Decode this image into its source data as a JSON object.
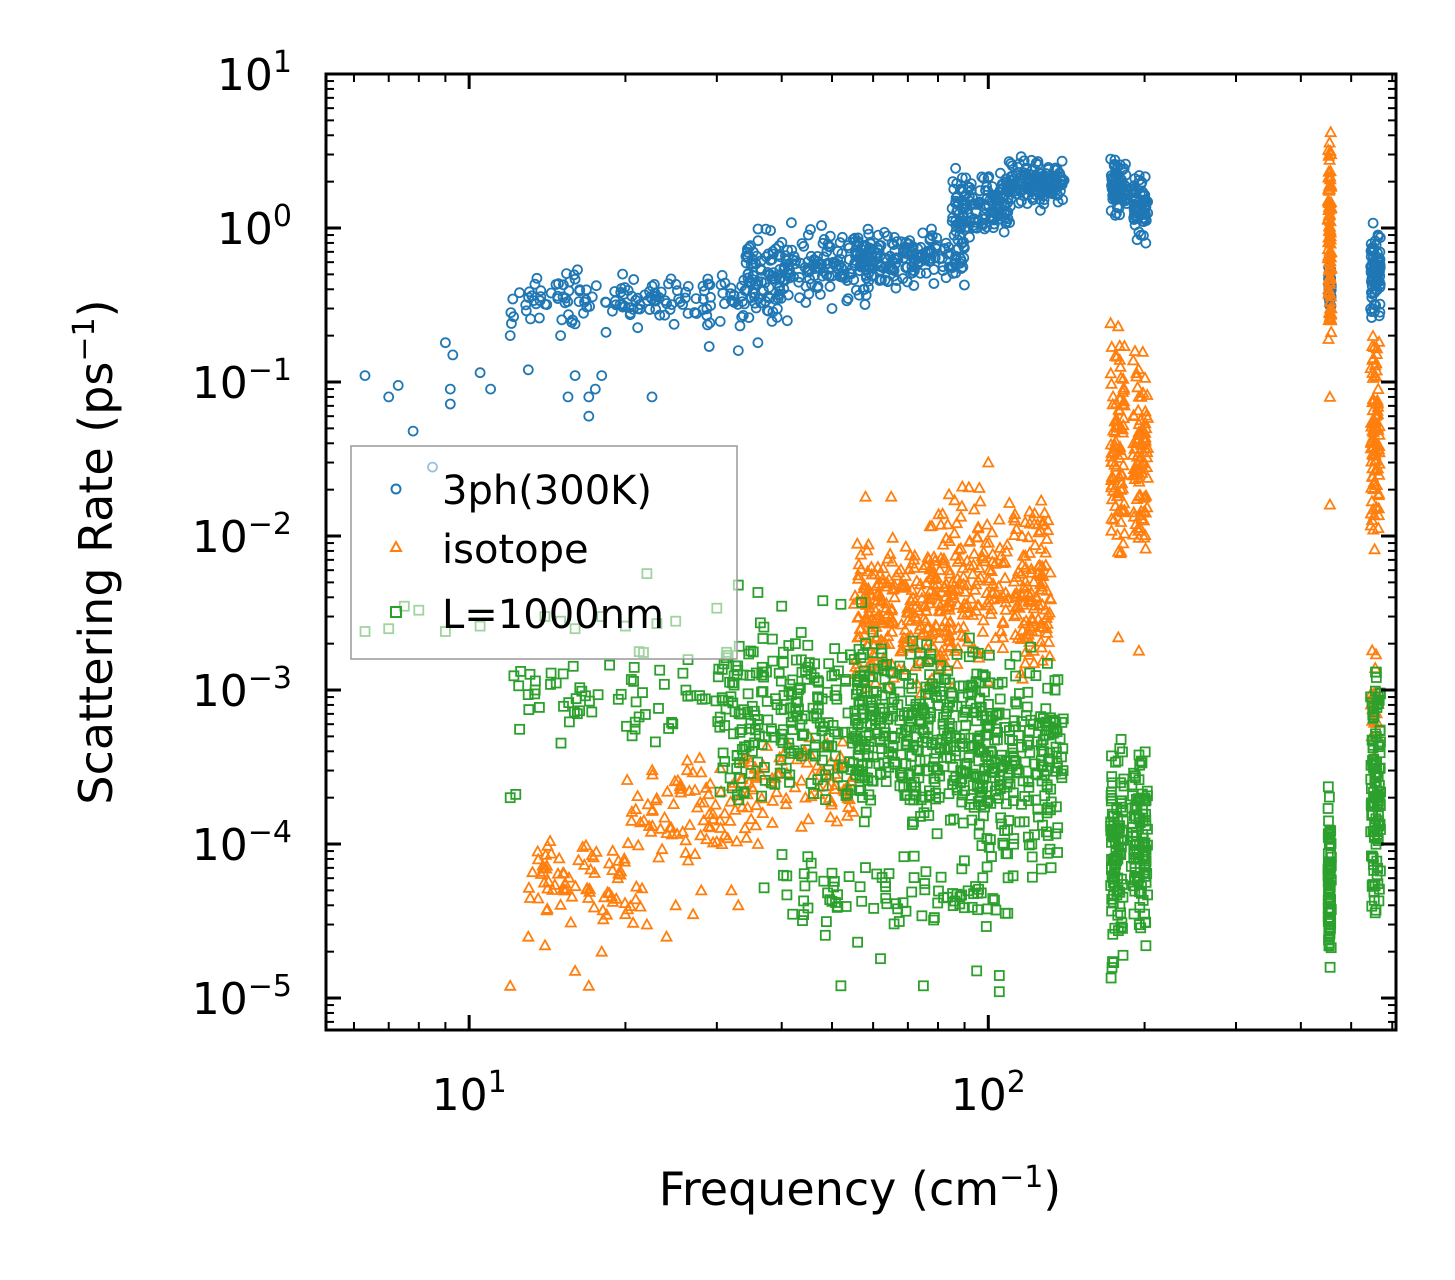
{
  "chart_data": {
    "type": "scatter",
    "title": "",
    "xlabel": "Frequency (cm",
    "xlabel_exp": "−1",
    "xlabel_tail": ")",
    "ylabel": "Scattering Rate (ps",
    "ylabel_exp": "−1",
    "ylabel_tail": ")",
    "xscale": "log",
    "yscale": "log",
    "xlim": [
      5.3,
      610
    ],
    "ylim": [
      6.2e-06,
      10
    ],
    "x_ticks": [
      {
        "base": "10",
        "exp": "1",
        "value": 10
      },
      {
        "base": "10",
        "exp": "2",
        "value": 100
      }
    ],
    "y_ticks": [
      {
        "base": "10",
        "exp": "1",
        "value": 10
      },
      {
        "base": "10",
        "exp": "0",
        "value": 1
      },
      {
        "base": "10",
        "exp": "−1",
        "value": 0.1
      },
      {
        "base": "10",
        "exp": "−2",
        "value": 0.01
      },
      {
        "base": "10",
        "exp": "−3",
        "value": 0.001
      },
      {
        "base": "10",
        "exp": "−4",
        "value": 0.0001
      },
      {
        "base": "10",
        "exp": "−5",
        "value": 1e-05
      }
    ],
    "legend_position": "center-left",
    "series": [
      {
        "name": "3ph(300K)",
        "color": "#1f77b4",
        "marker": "circle",
        "points": [
          [
            6.3,
            0.11
          ],
          [
            7,
            0.08
          ],
          [
            7.3,
            0.095
          ],
          [
            7.8,
            0.048
          ],
          [
            8.5,
            0.028
          ],
          [
            9.2,
            0.09
          ],
          [
            9.2,
            0.072
          ],
          [
            9.3,
            0.15
          ],
          [
            9,
            0.18
          ],
          [
            10.5,
            0.115
          ],
          [
            11,
            0.09
          ],
          [
            12,
            0.2
          ],
          [
            12.5,
            0.38
          ],
          [
            13,
            0.12
          ],
          [
            14,
            0.32
          ],
          [
            15,
            0.2
          ],
          [
            15.5,
            0.08
          ],
          [
            16,
            0.11
          ],
          [
            17,
            0.06
          ],
          [
            17,
            0.08
          ],
          [
            17.5,
            0.09
          ],
          [
            18,
            0.11
          ],
          [
            22.5,
            0.08
          ],
          [
            29,
            0.17
          ],
          [
            36,
            0.18
          ],
          [
            33,
            0.16
          ],
          [
            41,
            0.25
          ],
          [
            50,
            0.3
          ]
        ],
        "clusters": [
          {
            "x_range": [
              12,
              25
            ],
            "y_range": [
              0.2,
              0.55
            ],
            "count": 90
          },
          {
            "x_range": [
              22,
              40
            ],
            "y_range": [
              0.22,
              0.55
            ],
            "count": 90
          },
          {
            "x_range": [
              34,
              60
            ],
            "y_range": [
              0.3,
              1.1
            ],
            "count": 200
          },
          {
            "x_range": [
              55,
              90
            ],
            "y_range": [
              0.4,
              1.0
            ],
            "count": 180
          },
          {
            "x_range": [
              85,
              110
            ],
            "y_range": [
              0.8,
              2.5
            ],
            "count": 140
          },
          {
            "x_range": [
              108,
              140
            ],
            "y_range": [
              1.3,
              3.0
            ],
            "count": 140
          },
          {
            "x_range": [
              172,
              185
            ],
            "y_range": [
              1.2,
              3.0
            ],
            "count": 70
          },
          {
            "x_range": [
              190,
              203
            ],
            "y_range": [
              0.75,
              2.4
            ],
            "count": 70
          },
          {
            "x_range": [
              452,
              458
            ],
            "y_range": [
              0.28,
              0.6
            ],
            "count": 40
          },
          {
            "x_range": [
              545,
              570
            ],
            "y_range": [
              0.25,
              1.1
            ],
            "count": 90
          }
        ]
      },
      {
        "name": "isotope",
        "color": "#ff7f0e",
        "marker": "triangle",
        "points": [
          [
            12,
            1.2e-05
          ],
          [
            13,
            2.5e-05
          ],
          [
            14,
            2.2e-05
          ],
          [
            16,
            1.5e-05
          ],
          [
            17,
            1.2e-05
          ],
          [
            18,
            2e-05
          ],
          [
            20,
            3.5e-05
          ],
          [
            22,
            3e-05
          ],
          [
            24,
            2.5e-05
          ],
          [
            25,
            4e-05
          ],
          [
            27,
            3.5e-05
          ],
          [
            32,
            5e-05
          ],
          [
            36,
            0.0001
          ],
          [
            28,
            5e-05
          ],
          [
            33,
            4e-05
          ],
          [
            58,
            0.018
          ],
          [
            65,
            0.018
          ],
          [
            100,
            0.03
          ],
          [
            178,
            0.0022
          ],
          [
            195,
            0.0018
          ],
          [
            455,
            0.08
          ],
          [
            455,
            0.016
          ]
        ],
        "clusters": [
          {
            "x_range": [
              13,
              22
            ],
            "y_range": [
              2.5e-05,
              0.00012
            ],
            "count": 80
          },
          {
            "x_range": [
              20,
              36
            ],
            "y_range": [
              7e-05,
              0.0004
            ],
            "count": 90
          },
          {
            "x_range": [
              33,
              55
            ],
            "y_range": [
              0.00012,
              0.0006
            ],
            "count": 80
          },
          {
            "x_range": [
              55,
              85
            ],
            "y_range": [
              0.0008,
              0.012
            ],
            "count": 250
          },
          {
            "x_range": [
              80,
              110
            ],
            "y_range": [
              0.001,
              0.025
            ],
            "count": 150
          },
          {
            "x_range": [
              112,
              132
            ],
            "y_range": [
              0.001,
              0.02
            ],
            "count": 120
          },
          {
            "x_range": [
              172,
              183
            ],
            "y_range": [
              0.005,
              0.3
            ],
            "count": 90
          },
          {
            "x_range": [
              190,
              203
            ],
            "y_range": [
              0.006,
              0.2
            ],
            "count": 90
          },
          {
            "x_range": [
              451,
              458
            ],
            "y_range": [
              0.15,
              5
            ],
            "count": 90
          },
          {
            "x_range": [
              545,
              568
            ],
            "y_range": [
              0.008,
              0.28
            ],
            "count": 90
          },
          {
            "x_range": [
              545,
              565
            ],
            "y_range": [
              0.0003,
              0.0025
            ],
            "count": 20
          }
        ]
      },
      {
        "name": "L=1000nm",
        "color": "#2ca02c",
        "marker": "square",
        "points": [
          [
            6.3,
            0.0024
          ],
          [
            7,
            0.0025
          ],
          [
            7.5,
            0.0035
          ],
          [
            8,
            0.0033
          ],
          [
            9,
            0.0024
          ],
          [
            12,
            0.0002
          ],
          [
            12.3,
            0.00021
          ],
          [
            10.5,
            0.0026
          ],
          [
            14,
            0.003
          ],
          [
            15,
            0.0028
          ],
          [
            16,
            0.0025
          ],
          [
            18,
            0.003
          ],
          [
            20,
            0.0026
          ],
          [
            22,
            0.0057
          ],
          [
            23,
            0.0027
          ],
          [
            25,
            0.0028
          ],
          [
            30,
            0.0034
          ],
          [
            33,
            0.0048
          ],
          [
            36,
            0.0043
          ],
          [
            40,
            0.0035
          ],
          [
            48,
            0.0038
          ],
          [
            52,
            0.0036
          ],
          [
            57,
            0.0037
          ],
          [
            37,
            5.2e-05
          ],
          [
            42,
            3.5e-05
          ],
          [
            52,
            1.2e-05
          ],
          [
            62,
            1.8e-05
          ],
          [
            75,
            1.2e-05
          ],
          [
            95,
            1.5e-05
          ],
          [
            105,
            1.1e-05
          ],
          [
            105,
            1.4e-05
          ]
        ],
        "clusters": [
          {
            "x_range": [
              12,
              35
            ],
            "y_range": [
              0.0004,
              0.002
            ],
            "count": 70
          },
          {
            "x_range": [
              30,
              60
            ],
            "y_range": [
              0.00015,
              0.003
            ],
            "count": 250
          },
          {
            "x_range": [
              55,
              100
            ],
            "y_range": [
              0.0001,
              0.0025
            ],
            "count": 350
          },
          {
            "x_range": [
              40,
              110
            ],
            "y_range": [
              2e-05,
              0.0001
            ],
            "count": 90
          },
          {
            "x_range": [
              95,
              140
            ],
            "y_range": [
              6e-05,
              0.0022
            ],
            "count": 220
          },
          {
            "x_range": [
              172,
              183
            ],
            "y_range": [
              1.2e-05,
              0.0005
            ],
            "count": 100
          },
          {
            "x_range": [
              188,
              203
            ],
            "y_range": [
              1.8e-05,
              0.0005
            ],
            "count": 100
          },
          {
            "x_range": [
              451,
              458
            ],
            "y_range": [
              1.2e-05,
              0.0003
            ],
            "count": 80
          },
          {
            "x_range": [
              545,
              570
            ],
            "y_range": [
              2.2e-05,
              0.0018
            ],
            "count": 110
          }
        ]
      }
    ]
  }
}
